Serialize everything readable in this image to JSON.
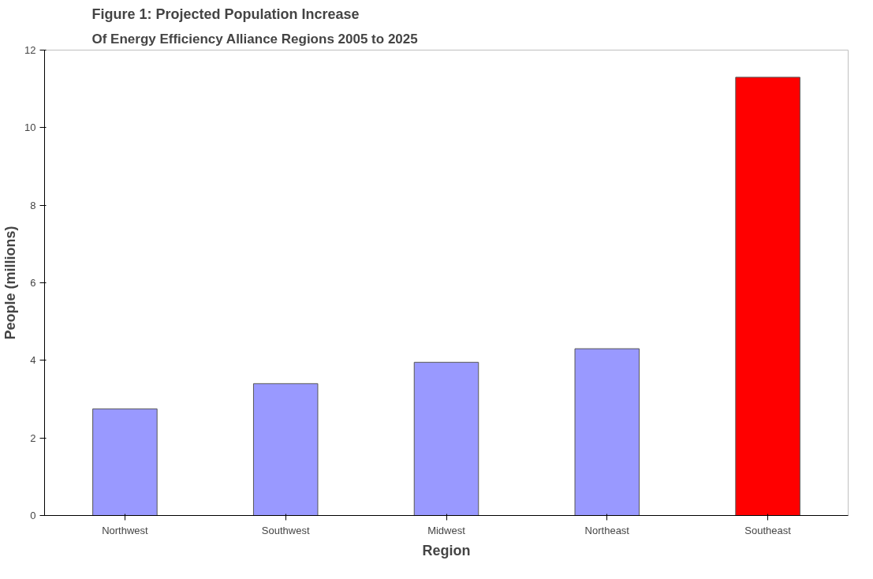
{
  "chart_data": {
    "type": "bar",
    "title": "Figure 1: Projected Population Increase",
    "subtitle": "Of Energy Efficiency Alliance Regions 2005 to 2025",
    "xlabel": "Region",
    "ylabel": "People (millions)",
    "categories": [
      "Northwest",
      "Southwest",
      "Midwest",
      "Northeast",
      "Southeast"
    ],
    "values": [
      2.75,
      3.4,
      3.95,
      4.3,
      11.3
    ],
    "colors": [
      "#9999ff",
      "#9999ff",
      "#9999ff",
      "#9999ff",
      "#ff0000"
    ],
    "ylim": [
      0,
      12
    ],
    "yticks": [
      0,
      2,
      4,
      6,
      8,
      10,
      12
    ],
    "grid": false
  }
}
